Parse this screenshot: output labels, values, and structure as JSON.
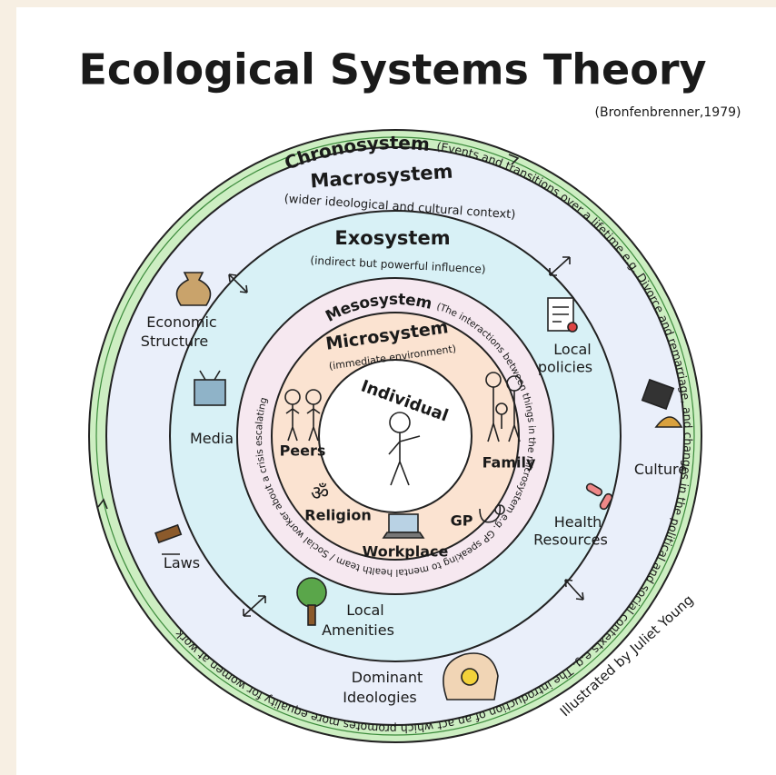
{
  "title": "Ecological Systems Theory",
  "citation": "(Bronfenbrenner,1979)",
  "chronosystem": {
    "name": "Chronosystem",
    "description": "(Events and transitions over a lifetime e.g. Divorce and remarriage, and changes in the political and social contexts e.g. The introduction of an act which promotes more equality for women at work"
  },
  "macrosystem": {
    "name": "Macrosystem",
    "description": "(wider ideological and cultural context)",
    "items": [
      {
        "label": [
          "Economic",
          "Structure"
        ]
      },
      {
        "label": [
          "Laws"
        ]
      },
      {
        "label": [
          "Dominant",
          "Ideologies"
        ]
      },
      {
        "label": [
          "Culture"
        ]
      }
    ]
  },
  "exosystem": {
    "name": "Exosystem",
    "description": "(indirect but powerful influence)",
    "items": [
      {
        "label": [
          "Media"
        ]
      },
      {
        "label": [
          "Local",
          "Amenities"
        ]
      },
      {
        "label": [
          "Local",
          "policies"
        ]
      },
      {
        "label": [
          "Health",
          "Resources"
        ]
      }
    ]
  },
  "mesosystem": {
    "name": "Mesosystem",
    "description": "(The interactions between things in the microsystem e.g. GP speaking to mental health team / Social worker about a crisis escalating"
  },
  "microsystem": {
    "name": "Microsystem",
    "description": "(immediate environment)",
    "items": [
      "Peers",
      "Family",
      "Religion",
      "GP",
      "Workplace"
    ]
  },
  "individual": "Individual",
  "credit": "Illustrated by Juliet Young"
}
